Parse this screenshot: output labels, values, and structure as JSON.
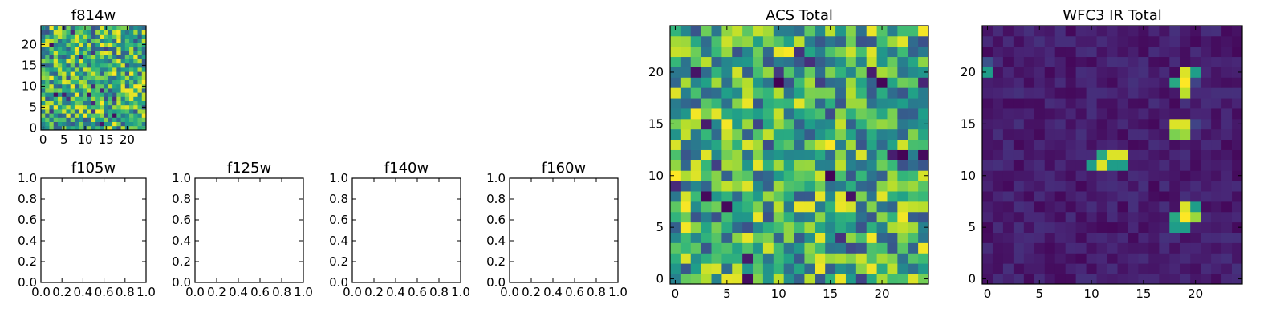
{
  "chart_data": [
    {
      "type": "heatmap",
      "title": "f814w",
      "grid_size": 25,
      "colormap": "viridis",
      "xticks": [
        "0",
        "5",
        "10",
        "15",
        "20"
      ],
      "yticks": [
        "0",
        "5",
        "10",
        "15",
        "20"
      ],
      "pattern": "noise",
      "seed": 11,
      "hotspots": []
    },
    {
      "type": "empty",
      "title": "f105w",
      "xlim": [
        0.0,
        1.0
      ],
      "ylim": [
        0.0,
        1.0
      ],
      "xticks": [
        "0.0",
        "0.2",
        "0.4",
        "0.6",
        "0.8",
        "1.0"
      ],
      "yticks": [
        "0.0",
        "0.2",
        "0.4",
        "0.6",
        "0.8",
        "1.0"
      ]
    },
    {
      "type": "empty",
      "title": "f125w",
      "xlim": [
        0.0,
        1.0
      ],
      "ylim": [
        0.0,
        1.0
      ],
      "xticks": [
        "0.0",
        "0.2",
        "0.4",
        "0.6",
        "0.8",
        "1.0"
      ],
      "yticks": [
        "0.0",
        "0.2",
        "0.4",
        "0.6",
        "0.8",
        "1.0"
      ]
    },
    {
      "type": "empty",
      "title": "f140w",
      "xlim": [
        0.0,
        1.0
      ],
      "ylim": [
        0.0,
        1.0
      ],
      "xticks": [
        "0.0",
        "0.2",
        "0.4",
        "0.6",
        "0.8",
        "1.0"
      ],
      "yticks": [
        "0.0",
        "0.2",
        "0.4",
        "0.6",
        "0.8",
        "1.0"
      ]
    },
    {
      "type": "empty",
      "title": "f160w",
      "xlim": [
        0.0,
        1.0
      ],
      "ylim": [
        0.0,
        1.0
      ],
      "xticks": [
        "0.0",
        "0.2",
        "0.4",
        "0.6",
        "0.8",
        "1.0"
      ],
      "yticks": [
        "0.0",
        "0.2",
        "0.4",
        "0.6",
        "0.8",
        "1.0"
      ]
    },
    {
      "type": "heatmap",
      "title": "ACS Total",
      "grid_size": 25,
      "colormap": "viridis",
      "xticks": [
        "0",
        "5",
        "10",
        "15",
        "20"
      ],
      "yticks": [
        "0",
        "5",
        "10",
        "15",
        "20"
      ],
      "pattern": "noise",
      "seed": 29,
      "hotspots": []
    },
    {
      "type": "heatmap",
      "title": "WFC3 IR Total",
      "grid_size": 25,
      "colormap": "viridis",
      "xticks": [
        "0",
        "5",
        "10",
        "15",
        "20"
      ],
      "yticks": [
        "0",
        "5",
        "10",
        "15",
        "20"
      ],
      "pattern": "background",
      "seed": 7,
      "hotspots": [
        {
          "x": 19,
          "y": 20,
          "v": 0.95
        },
        {
          "x": 20,
          "y": 20,
          "v": 0.55
        },
        {
          "x": 18,
          "y": 19,
          "v": 0.6
        },
        {
          "x": 19,
          "y": 19,
          "v": 1.0
        },
        {
          "x": 20,
          "y": 19,
          "v": 0.2
        },
        {
          "x": 19,
          "y": 18,
          "v": 0.9
        },
        {
          "x": 18,
          "y": 15,
          "v": 0.95
        },
        {
          "x": 19,
          "y": 15,
          "v": 0.95
        },
        {
          "x": 18,
          "y": 14,
          "v": 0.8
        },
        {
          "x": 19,
          "y": 14,
          "v": 0.85
        },
        {
          "x": 20,
          "y": 15,
          "v": 0.2
        },
        {
          "x": 11,
          "y": 12,
          "v": 0.6
        },
        {
          "x": 12,
          "y": 12,
          "v": 0.95
        },
        {
          "x": 13,
          "y": 12,
          "v": 0.95
        },
        {
          "x": 10,
          "y": 11,
          "v": 0.55
        },
        {
          "x": 11,
          "y": 11,
          "v": 0.95
        },
        {
          "x": 12,
          "y": 11,
          "v": 0.55
        },
        {
          "x": 13,
          "y": 11,
          "v": 0.55
        },
        {
          "x": 19,
          "y": 7,
          "v": 0.95
        },
        {
          "x": 20,
          "y": 7,
          "v": 0.55
        },
        {
          "x": 18,
          "y": 6,
          "v": 0.6
        },
        {
          "x": 19,
          "y": 6,
          "v": 1.0
        },
        {
          "x": 20,
          "y": 6,
          "v": 0.85
        },
        {
          "x": 18,
          "y": 5,
          "v": 0.55
        },
        {
          "x": 19,
          "y": 5,
          "v": 0.55
        },
        {
          "x": 0,
          "y": 20,
          "v": 0.55
        },
        {
          "x": 0,
          "y": 21,
          "v": 0.25
        }
      ]
    }
  ]
}
